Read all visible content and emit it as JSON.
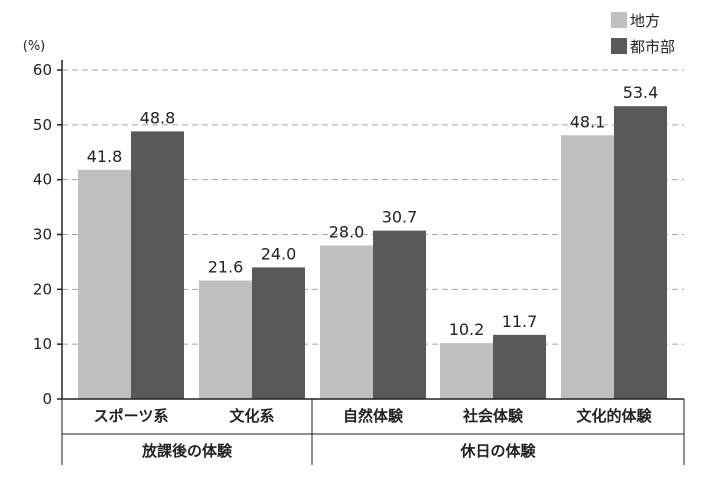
{
  "chart_data": {
    "type": "bar",
    "y_unit_label": "(%)",
    "ylim": [
      0,
      60
    ],
    "yticks": [
      0,
      10,
      20,
      30,
      40,
      50,
      60
    ],
    "grid": "horizontal dashed",
    "legend_position": "top-right",
    "categories": [
      "スポーツ系",
      "文化系",
      "自然体験",
      "社会体験",
      "文化的体験"
    ],
    "groups": [
      {
        "label": "放課後の体験",
        "categories": [
          "スポーツ系",
          "文化系"
        ]
      },
      {
        "label": "休日の体験",
        "categories": [
          "自然体験",
          "社会体験",
          "文化的体験"
        ]
      }
    ],
    "series": [
      {
        "name": "地方",
        "color": "#bfbfbf",
        "values": [
          41.8,
          21.6,
          28.0,
          10.2,
          48.1
        ]
      },
      {
        "name": "都市部",
        "color": "#595959",
        "values": [
          48.8,
          24.0,
          30.7,
          11.7,
          53.4
        ]
      }
    ],
    "value_labels": [
      [
        "41.8",
        "21.6",
        "28.0",
        "10.2",
        "48.1"
      ],
      [
        "48.8",
        "24.0",
        "30.7",
        "11.7",
        "53.4"
      ]
    ]
  }
}
